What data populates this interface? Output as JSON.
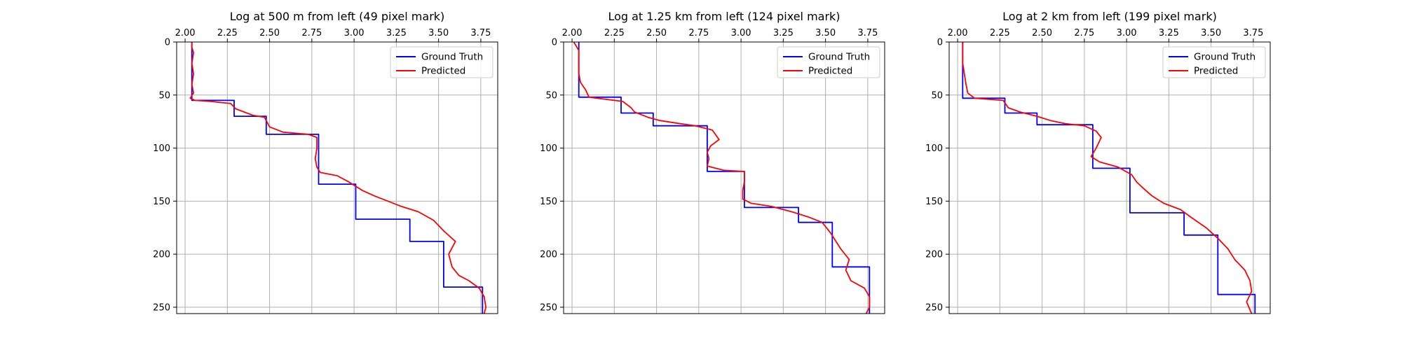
{
  "colors": {
    "ground_truth": "#0000ff",
    "predicted": "#ff0000",
    "grid": "#b0b0b0",
    "axes": "#000000"
  },
  "chart_data": [
    {
      "type": "line",
      "title": "Log at 500 m from left (49 pixel mark)",
      "xlabel": "",
      "ylabel": "",
      "xlim": [
        1.95,
        3.85
      ],
      "ylim": [
        256,
        0
      ],
      "x_axis_position": "top",
      "y_inverted": true,
      "grid": true,
      "legend": "top-right",
      "xticks": [
        2.0,
        2.25,
        2.5,
        2.75,
        3.0,
        3.25,
        3.5,
        3.75
      ],
      "xtick_labels": [
        "2.00",
        "2.25",
        "2.50",
        "2.75",
        "3.00",
        "3.25",
        "3.50",
        "3.75"
      ],
      "yticks": [
        0,
        50,
        100,
        150,
        200,
        250
      ],
      "ytick_labels": [
        "0",
        "50",
        "100",
        "150",
        "200",
        "250"
      ],
      "series": [
        {
          "name": "Ground Truth",
          "color": "#0000ff",
          "points": [
            [
              2.04,
              0
            ],
            [
              2.04,
              55
            ],
            [
              2.29,
              55
            ],
            [
              2.29,
              70
            ],
            [
              2.48,
              70
            ],
            [
              2.48,
              87
            ],
            [
              2.79,
              87
            ],
            [
              2.79,
              134
            ],
            [
              3.01,
              134
            ],
            [
              3.01,
              167
            ],
            [
              3.33,
              167
            ],
            [
              3.33,
              188
            ],
            [
              3.53,
              188
            ],
            [
              3.53,
              231
            ],
            [
              3.76,
              231
            ],
            [
              3.76,
              256
            ]
          ]
        },
        {
          "name": "Predicted",
          "color": "#ff0000",
          "points": [
            [
              2.04,
              0
            ],
            [
              2.04,
              5
            ],
            [
              2.05,
              10
            ],
            [
              2.04,
              20
            ],
            [
              2.05,
              30
            ],
            [
              2.04,
              40
            ],
            [
              2.05,
              48
            ],
            [
              2.03,
              53
            ],
            [
              2.06,
              55
            ],
            [
              2.15,
              56
            ],
            [
              2.27,
              58
            ],
            [
              2.3,
              63
            ],
            [
              2.4,
              69
            ],
            [
              2.47,
              71
            ],
            [
              2.5,
              80
            ],
            [
              2.58,
              85
            ],
            [
              2.73,
              87
            ],
            [
              2.78,
              90
            ],
            [
              2.78,
              100
            ],
            [
              2.77,
              110
            ],
            [
              2.78,
              118
            ],
            [
              2.8,
              123
            ],
            [
              2.9,
              126
            ],
            [
              2.97,
              132
            ],
            [
              3.05,
              140
            ],
            [
              3.12,
              145
            ],
            [
              3.2,
              150
            ],
            [
              3.28,
              155
            ],
            [
              3.38,
              160
            ],
            [
              3.47,
              168
            ],
            [
              3.53,
              178
            ],
            [
              3.6,
              188
            ],
            [
              3.56,
              200
            ],
            [
              3.58,
              212
            ],
            [
              3.62,
              220
            ],
            [
              3.68,
              225
            ],
            [
              3.74,
              232
            ],
            [
              3.77,
              240
            ],
            [
              3.78,
              250
            ],
            [
              3.77,
              256
            ]
          ]
        }
      ]
    },
    {
      "type": "line",
      "title": "Log at 1.25 km from left (124 pixel mark)",
      "xlabel": "",
      "ylabel": "",
      "xlim": [
        1.95,
        3.85
      ],
      "ylim": [
        256,
        0
      ],
      "x_axis_position": "top",
      "y_inverted": true,
      "grid": true,
      "legend": "top-right",
      "xticks": [
        2.0,
        2.25,
        2.5,
        2.75,
        3.0,
        3.25,
        3.5,
        3.75
      ],
      "xtick_labels": [
        "2.00",
        "2.25",
        "2.50",
        "2.75",
        "3.00",
        "3.25",
        "3.50",
        "3.75"
      ],
      "yticks": [
        0,
        50,
        100,
        150,
        200,
        250
      ],
      "ytick_labels": [
        "0",
        "50",
        "100",
        "150",
        "200",
        "250"
      ],
      "series": [
        {
          "name": "Ground Truth",
          "color": "#0000ff",
          "points": [
            [
              2.04,
              0
            ],
            [
              2.04,
              52
            ],
            [
              2.29,
              52
            ],
            [
              2.29,
              67
            ],
            [
              2.48,
              67
            ],
            [
              2.48,
              79
            ],
            [
              2.8,
              79
            ],
            [
              2.8,
              122
            ],
            [
              3.02,
              122
            ],
            [
              3.02,
              156
            ],
            [
              3.34,
              156
            ],
            [
              3.34,
              170
            ],
            [
              3.54,
              170
            ],
            [
              3.54,
              212
            ],
            [
              3.76,
              212
            ],
            [
              3.76,
              256
            ]
          ]
        },
        {
          "name": "Predicted",
          "color": "#ff0000",
          "points": [
            [
              2.01,
              0
            ],
            [
              2.04,
              8
            ],
            [
              2.04,
              20
            ],
            [
              2.04,
              30
            ],
            [
              2.05,
              38
            ],
            [
              2.08,
              45
            ],
            [
              2.1,
              52
            ],
            [
              2.3,
              56
            ],
            [
              2.35,
              62
            ],
            [
              2.37,
              66
            ],
            [
              2.45,
              71
            ],
            [
              2.52,
              74
            ],
            [
              2.64,
              77
            ],
            [
              2.73,
              79
            ],
            [
              2.83,
              83
            ],
            [
              2.87,
              92
            ],
            [
              2.82,
              98
            ],
            [
              2.8,
              104
            ],
            [
              2.81,
              110
            ],
            [
              2.8,
              117
            ],
            [
              2.9,
              121
            ],
            [
              3.02,
              122
            ],
            [
              3.02,
              132
            ],
            [
              3.01,
              140
            ],
            [
              3.01,
              148
            ],
            [
              3.06,
              152
            ],
            [
              3.18,
              155
            ],
            [
              3.3,
              160
            ],
            [
              3.4,
              165
            ],
            [
              3.48,
              170
            ],
            [
              3.53,
              180
            ],
            [
              3.59,
              195
            ],
            [
              3.64,
              205
            ],
            [
              3.62,
              215
            ],
            [
              3.65,
              225
            ],
            [
              3.73,
              232
            ],
            [
              3.76,
              240
            ],
            [
              3.76,
              250
            ],
            [
              3.74,
              256
            ]
          ]
        }
      ]
    },
    {
      "type": "line",
      "title": "Log at 2 km from left (199 pixel mark)",
      "xlabel": "",
      "ylabel": "",
      "xlim": [
        1.95,
        3.85
      ],
      "ylim": [
        256,
        0
      ],
      "x_axis_position": "top",
      "y_inverted": true,
      "grid": true,
      "legend": "top-right",
      "xticks": [
        2.0,
        2.25,
        2.5,
        2.75,
        3.0,
        3.25,
        3.5,
        3.75
      ],
      "xtick_labels": [
        "2.00",
        "2.25",
        "2.50",
        "2.75",
        "3.00",
        "3.25",
        "3.50",
        "3.75"
      ],
      "yticks": [
        0,
        50,
        100,
        150,
        200,
        250
      ],
      "ytick_labels": [
        "0",
        "50",
        "100",
        "150",
        "200",
        "250"
      ],
      "series": [
        {
          "name": "Ground Truth",
          "color": "#0000ff",
          "points": [
            [
              2.03,
              0
            ],
            [
              2.03,
              53
            ],
            [
              2.28,
              53
            ],
            [
              2.28,
              67
            ],
            [
              2.47,
              67
            ],
            [
              2.47,
              78
            ],
            [
              2.8,
              78
            ],
            [
              2.8,
              119
            ],
            [
              3.02,
              119
            ],
            [
              3.02,
              161
            ],
            [
              3.34,
              161
            ],
            [
              3.34,
              182
            ],
            [
              3.54,
              182
            ],
            [
              3.54,
              238
            ],
            [
              3.76,
              238
            ],
            [
              3.76,
              256
            ]
          ]
        },
        {
          "name": "Predicted",
          "color": "#ff0000",
          "points": [
            [
              2.03,
              0
            ],
            [
              2.03,
              10
            ],
            [
              2.03,
              20
            ],
            [
              2.04,
              30
            ],
            [
              2.05,
              40
            ],
            [
              2.06,
              48
            ],
            [
              2.1,
              53
            ],
            [
              2.27,
              55
            ],
            [
              2.3,
              62
            ],
            [
              2.37,
              66
            ],
            [
              2.47,
              70
            ],
            [
              2.55,
              74
            ],
            [
              2.64,
              77
            ],
            [
              2.75,
              79
            ],
            [
              2.82,
              84
            ],
            [
              2.85,
              90
            ],
            [
              2.82,
              100
            ],
            [
              2.79,
              108
            ],
            [
              2.84,
              113
            ],
            [
              2.95,
              118
            ],
            [
              3.03,
              125
            ],
            [
              3.06,
              132
            ],
            [
              3.1,
              138
            ],
            [
              3.15,
              145
            ],
            [
              3.22,
              152
            ],
            [
              3.32,
              158
            ],
            [
              3.38,
              165
            ],
            [
              3.47,
              175
            ],
            [
              3.54,
              185
            ],
            [
              3.6,
              195
            ],
            [
              3.64,
              205
            ],
            [
              3.7,
              215
            ],
            [
              3.73,
              225
            ],
            [
              3.74,
              235
            ],
            [
              3.71,
              245
            ],
            [
              3.74,
              256
            ]
          ]
        }
      ]
    }
  ]
}
